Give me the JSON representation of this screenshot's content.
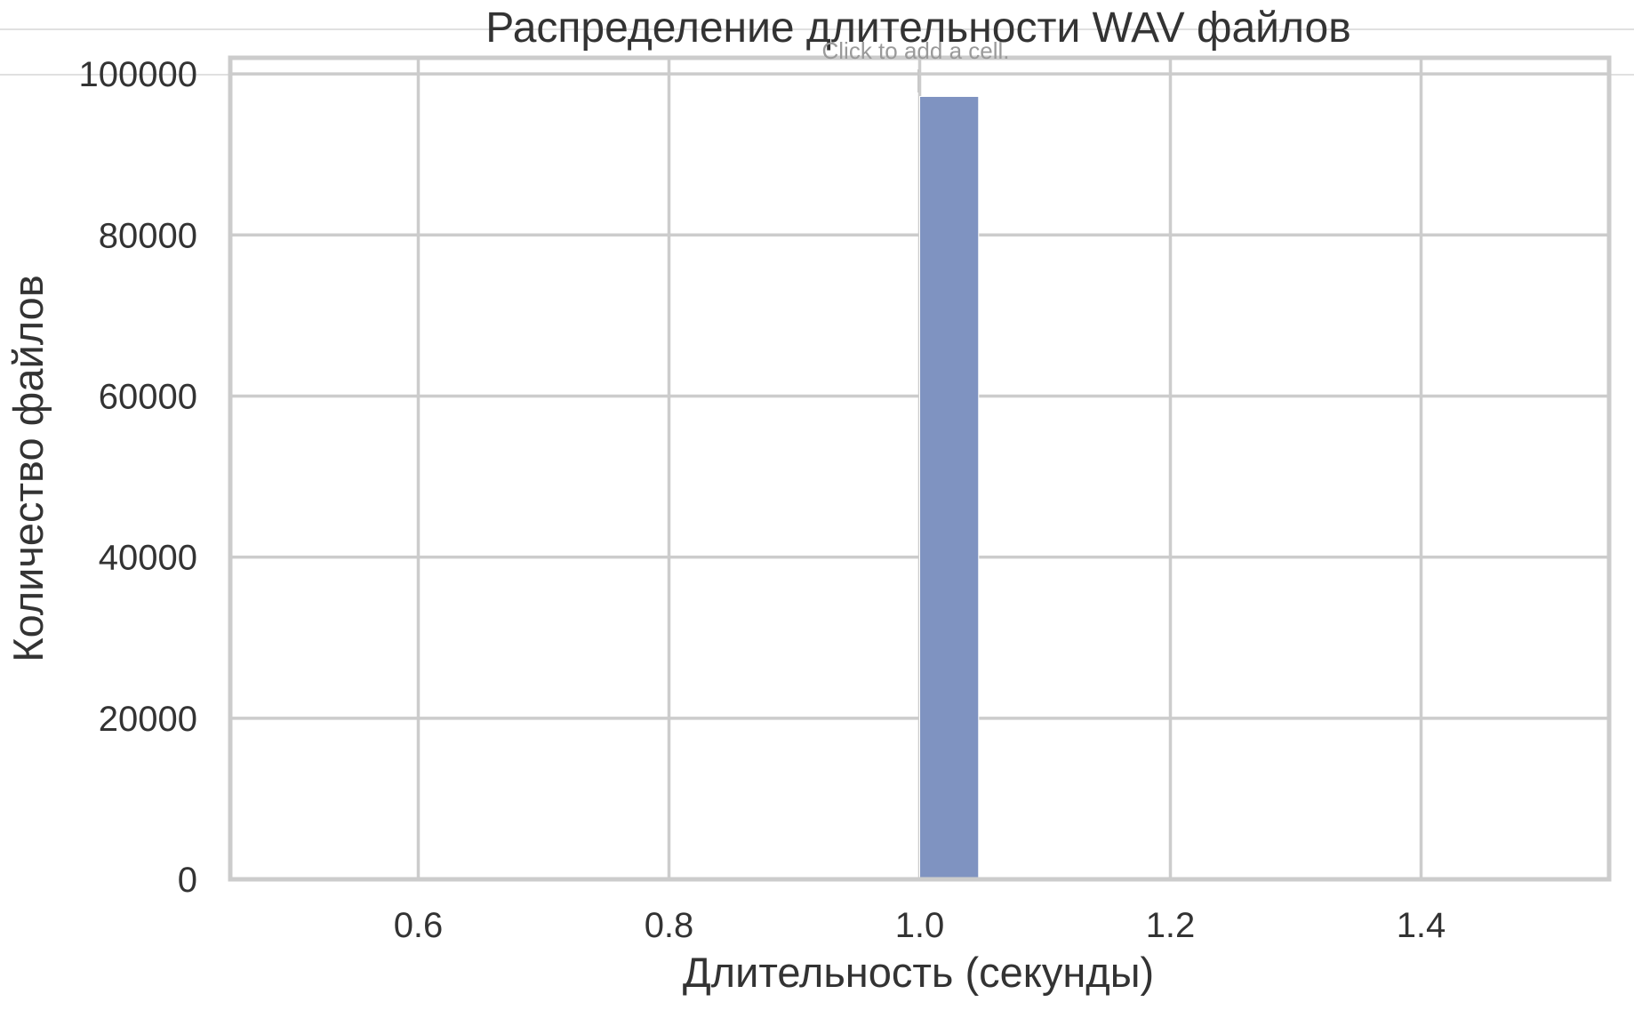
{
  "notebook": {
    "add_cell_hint": "Click to add a cell."
  },
  "chart_data": {
    "type": "bar",
    "title": "Распределение длительности WAV файлов",
    "xlabel": "Длительность (секунды)",
    "ylabel": "Количество файлов",
    "xlim": [
      0.45,
      1.55
    ],
    "ylim": [
      0,
      102000
    ],
    "xticks": [
      0.6,
      0.8,
      1.0,
      1.2,
      1.4
    ],
    "xtick_labels": [
      "0.6",
      "0.8",
      "1.0",
      "1.2",
      "1.4"
    ],
    "yticks": [
      0,
      20000,
      40000,
      60000,
      80000,
      100000
    ],
    "ytick_labels": [
      "0",
      "20000",
      "40000",
      "60000",
      "80000",
      "100000"
    ],
    "grid": true,
    "bar_color": "#7f93c1",
    "bins": [
      {
        "x0": 1.0,
        "x1": 1.047,
        "count": 97200
      }
    ]
  }
}
